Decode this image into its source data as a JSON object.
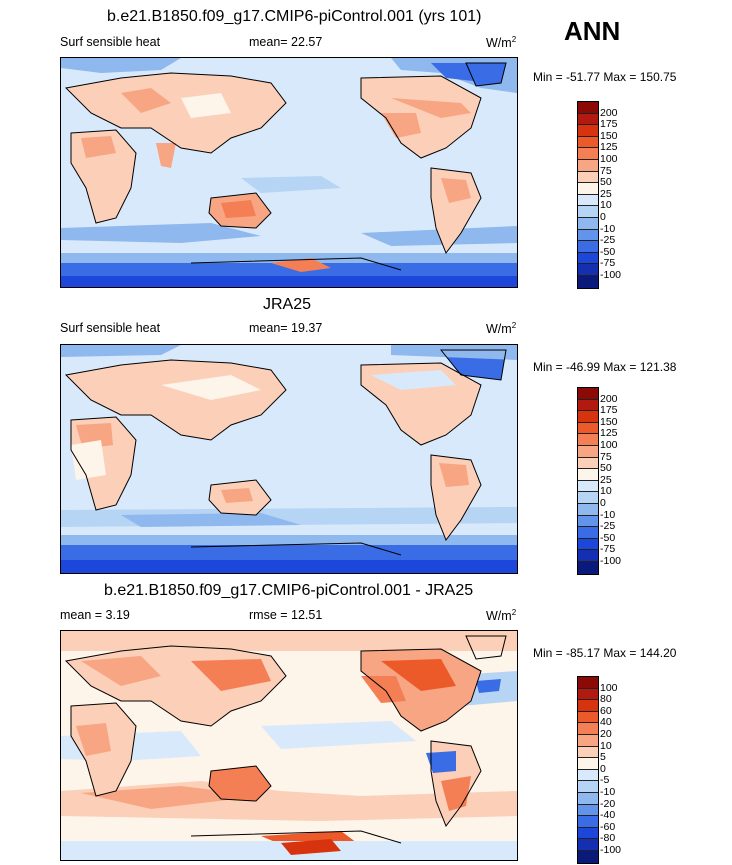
{
  "season": "ANN",
  "top_title": "b.e21.B1850.f09_g17.CMIP6-piControl.001 (yrs 101)",
  "mid_title": "JRA25",
  "bottom_title": "b.e21.B1850.f09_g17.CMIP6-piControl.001 - JRA25",
  "panels": [
    {
      "left_label": "Surf sensible heat",
      "center_label": "mean=  22.57",
      "units": "W/m",
      "units_sup": "2",
      "minmax": "Min = -51.77 Max = 150.75",
      "colorbar": {
        "labels": [
          "200",
          "175",
          "150",
          "125",
          "100",
          "75",
          "50",
          "25",
          "10",
          "0",
          "-10",
          "-25",
          "-50",
          "-75",
          "-100"
        ],
        "colors": [
          "#8b0a06",
          "#b31a0f",
          "#d7330f",
          "#ec5a2a",
          "#f47f54",
          "#f8a583",
          "#fbcfb8",
          "#fdf4ea",
          "#d8e9fb",
          "#b6d4f4",
          "#8fb8ee",
          "#6394ec",
          "#3a6ce6",
          "#1d46da",
          "#142fb1",
          "#0a1a7a"
        ]
      }
    },
    {
      "left_label": "Surf sensible heat",
      "center_label": "mean=  19.37",
      "units": "W/m",
      "units_sup": "2",
      "minmax": "Min = -46.99 Max = 121.38",
      "colorbar": {
        "labels": [
          "200",
          "175",
          "150",
          "125",
          "100",
          "75",
          "50",
          "25",
          "10",
          "0",
          "-10",
          "-25",
          "-50",
          "-75",
          "-100"
        ],
        "colors": [
          "#8b0a06",
          "#b31a0f",
          "#d7330f",
          "#ec5a2a",
          "#f47f54",
          "#f8a583",
          "#fbcfb8",
          "#fdf4ea",
          "#d8e9fb",
          "#b6d4f4",
          "#8fb8ee",
          "#6394ec",
          "#3a6ce6",
          "#1d46da",
          "#142fb1",
          "#0a1a7a"
        ]
      }
    },
    {
      "left_label": "mean =   3.19",
      "center_label": "rmse =  12.51",
      "units": "W/m",
      "units_sup": "2",
      "minmax": "Min = -85.17 Max = 144.20",
      "colorbar": {
        "labels": [
          "100",
          "80",
          "60",
          "40",
          "20",
          "10",
          "5",
          "0",
          "-5",
          "-10",
          "-20",
          "-40",
          "-60",
          "-80",
          "-100"
        ],
        "colors": [
          "#8b0a06",
          "#b31a0f",
          "#d7330f",
          "#ec5a2a",
          "#f47f54",
          "#f8a583",
          "#fbcfb8",
          "#fdf4ea",
          "#d8e9fb",
          "#b6d4f4",
          "#8fb8ee",
          "#6394ec",
          "#3a6ce6",
          "#1d46da",
          "#142fb1",
          "#0a1a7a"
        ]
      }
    }
  ],
  "map_colors": {
    "ocean_base": "#d8e9fb",
    "land_warm": "#fbcfb8",
    "warm_strong": "#f47f54",
    "cool": "#8fb8ee",
    "cool_strong": "#3a6ce6",
    "diff_base": "#fdf4ea"
  }
}
